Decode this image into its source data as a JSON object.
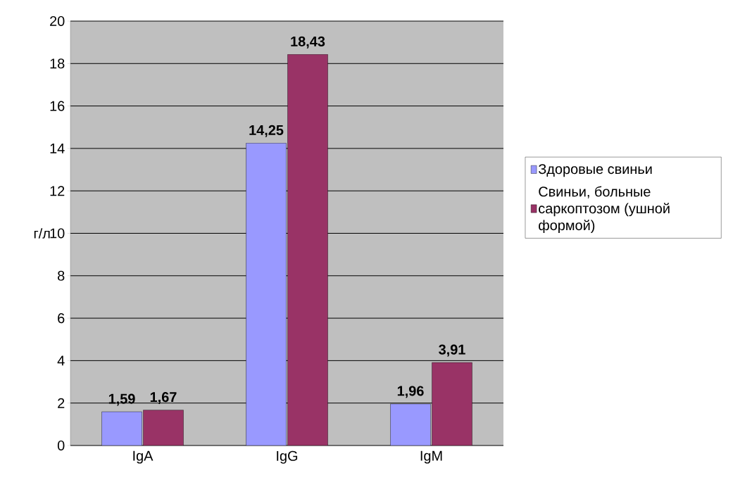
{
  "chart_data": {
    "type": "bar",
    "categories": [
      "IgA",
      "IgG",
      "IgM"
    ],
    "series": [
      {
        "name": "Здоровые свиньи",
        "color": "#9999ff",
        "values": [
          1.59,
          14.25,
          1.96
        ],
        "value_labels": [
          "1,59",
          "14,25",
          "1,96"
        ]
      },
      {
        "name": "Свиньи, больные саркоптозом (ушной формой)",
        "color": "#993366",
        "values": [
          1.67,
          18.43,
          3.91
        ],
        "value_labels": [
          "1,67",
          "18,43",
          "3,91"
        ]
      }
    ],
    "ylabel": "г/л",
    "ylim": [
      0,
      20
    ],
    "yticks": [
      0,
      2,
      4,
      6,
      8,
      10,
      12,
      14,
      16,
      18,
      20
    ],
    "grid": "y",
    "legend": "right"
  }
}
